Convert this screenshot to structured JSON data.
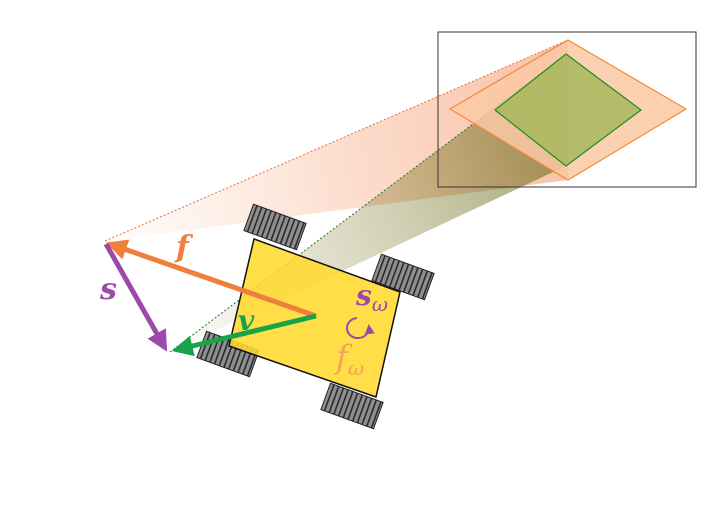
{
  "labels": {
    "f": "f",
    "s": "s",
    "v": "v",
    "s_omega": "s",
    "s_omega_sub": "ω",
    "f_omega": "f",
    "f_omega_sub": "ω"
  },
  "colors": {
    "f": "#f07e3c",
    "s": "#9b4aa8",
    "v": "#16a34a",
    "robot_body": "#ffd92e",
    "wheel": "#8f8f8f",
    "set_outer_fill": "#fcc9a4",
    "set_outer_stroke": "#f08a3a",
    "set_inner_fill": "#a8b85c",
    "set_inner_stroke": "#1d8a2a",
    "inset_frame": "#333333"
  },
  "icons": {
    "rotation": "rotation-arrow-icon"
  }
}
